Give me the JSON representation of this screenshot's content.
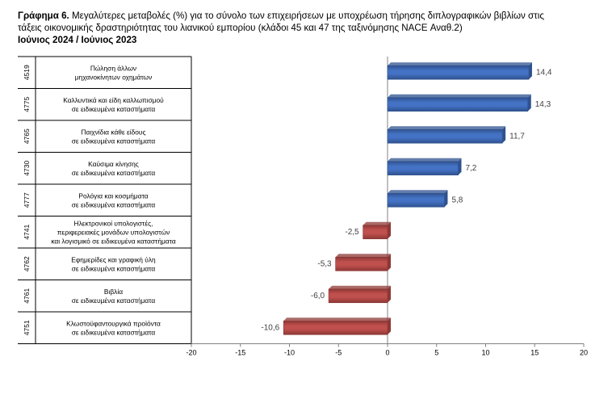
{
  "title": {
    "prefix": "Γράφημα 6.",
    "line1_rest": " Μεγαλύτερες μεταβολές (%) για το σύνολο των επιχειρήσεων με υποχρέωση τήρησης διπλογραφικών βιβλίων στις",
    "line2": "τάξεις οικονομικής δραστηριότητας του λιανικού εμπορίου (κλάδοι 45 και 47 της ταξινόμησης NACE Αναθ.2)",
    "line3": "Ιούνιος 2024 / Ιούνιος 2023"
  },
  "chart_data": {
    "type": "bar",
    "orientation": "horizontal",
    "categories": [
      {
        "code": "4519",
        "label": [
          "Πώληση άλλων",
          "μηχανοκίνητων οχημάτων"
        ]
      },
      {
        "code": "4775",
        "label": [
          "Καλλυντικά και είδη καλλωπισμού",
          "σε ειδικευμένα καταστήματα"
        ]
      },
      {
        "code": "4765",
        "label": [
          "Παιχνίδια κάθε είδους",
          "σε ειδικευμένα καταστήματα"
        ]
      },
      {
        "code": "4730",
        "label": [
          "Καύσιμα κίνησης",
          "σε ειδικευμένα καταστήματα"
        ]
      },
      {
        "code": "4777",
        "label": [
          "Ρολόγια και κοσμήματα",
          "σε ειδικευμένα καταστήματα"
        ]
      },
      {
        "code": "4741",
        "label": [
          "Ηλεκτρονικοί υπολογιστές,",
          "περιφερειακές μονάδων υπολογιστών",
          "και λογισμικό σε ειδικευμένα καταστήματα"
        ]
      },
      {
        "code": "4762",
        "label": [
          "Εφημερίδες και γραφική ύλη",
          "σε ειδικευμένα καταστήματα"
        ]
      },
      {
        "code": "4761",
        "label": [
          "Βιβλία",
          "σε ειδικευμένα καταστήματα"
        ]
      },
      {
        "code": "4751",
        "label": [
          "Κλωστοϋφαντουργικά προϊόντα",
          "σε ειδικευμένα καταστήματα"
        ]
      }
    ],
    "values": [
      14.4,
      14.3,
      11.7,
      7.2,
      5.8,
      -2.5,
      -5.3,
      -6.0,
      -10.6
    ],
    "value_labels": [
      "14,4",
      "14,3",
      "11,7",
      "7,2",
      "5,8",
      "-2,5",
      "-5,3",
      "-6,0",
      "-10,6"
    ],
    "xlim": [
      -20,
      20
    ],
    "xticks": [
      -20,
      -15,
      -10,
      -5,
      0,
      5,
      10,
      15,
      20
    ],
    "grid": false,
    "legend": "none",
    "colors": {
      "positive": "#4472c4",
      "positive_dark": "#2f528f",
      "negative": "#c0504d",
      "negative_dark": "#8c3836",
      "axis": "#808080"
    }
  }
}
